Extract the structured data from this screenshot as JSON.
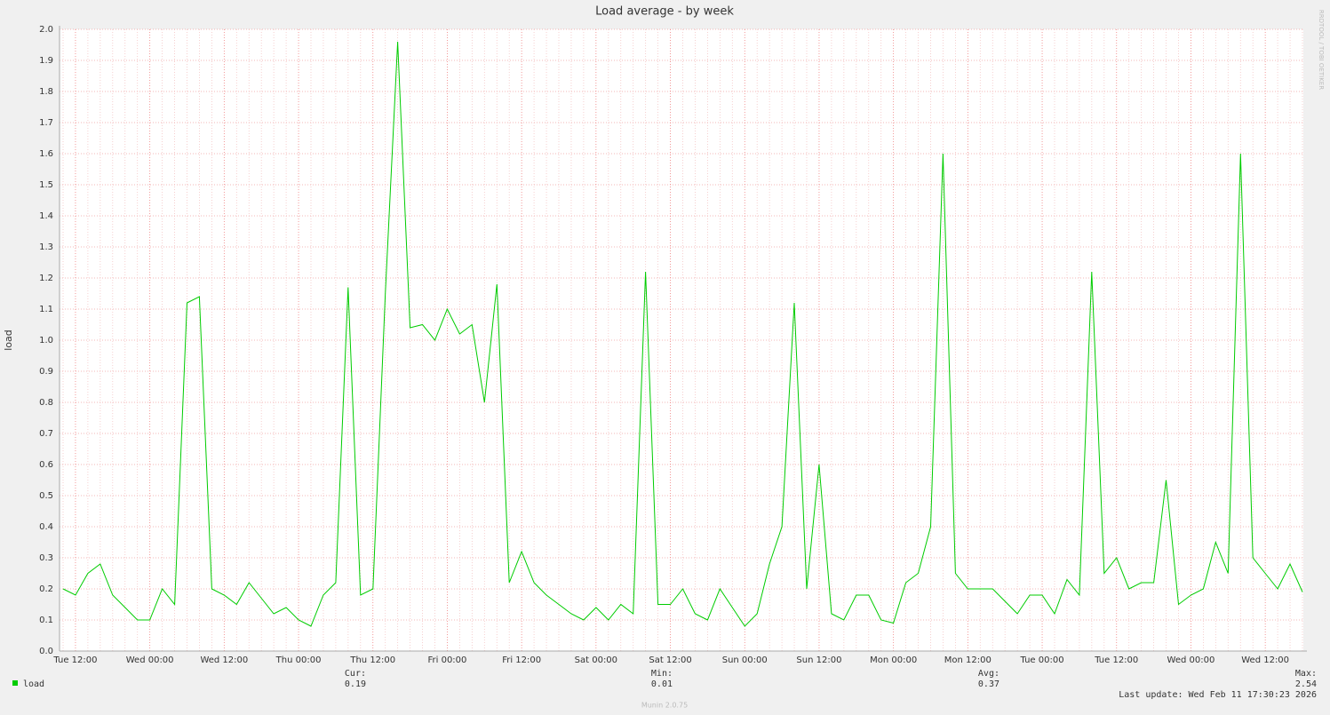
{
  "chart_data": {
    "type": "line",
    "title": "Load average - by week",
    "y_label": "load",
    "side_text": "RRDTOOL / TOBI OETIKER",
    "categories": [
      null,
      "Tue 12:00",
      null,
      null,
      null,
      null,
      null,
      "Wed 00:00",
      null,
      null,
      null,
      null,
      null,
      "Wed 12:00",
      null,
      null,
      null,
      null,
      null,
      "Thu 00:00",
      null,
      null,
      null,
      null,
      null,
      "Thu 12:00",
      null,
      null,
      null,
      null,
      null,
      "Fri 00:00",
      null,
      null,
      null,
      null,
      null,
      "Fri 12:00",
      null,
      null,
      null,
      null,
      null,
      "Sat 00:00",
      null,
      null,
      null,
      null,
      null,
      "Sat 12:00",
      null,
      null,
      null,
      null,
      null,
      "Sun 00:00",
      null,
      null,
      null,
      null,
      null,
      "Sun 12:00",
      null,
      null,
      null,
      null,
      null,
      "Mon 00:00",
      null,
      null,
      null,
      null,
      null,
      "Mon 12:00",
      null,
      null,
      null,
      null,
      null,
      "Tue 00:00",
      null,
      null,
      null,
      null,
      null,
      "Tue 12:00",
      null,
      null,
      null,
      null,
      null,
      "Wed 00:00",
      null,
      null,
      null,
      null,
      null,
      "Wed 12:00",
      null,
      null,
      null
    ],
    "series": [
      {
        "name": "load",
        "color": "#00cc00",
        "values": [
          0.2,
          0.18,
          0.25,
          0.28,
          0.18,
          0.14,
          0.1,
          0.1,
          0.2,
          0.15,
          1.12,
          1.14,
          0.2,
          0.18,
          0.15,
          0.22,
          0.17,
          0.12,
          0.14,
          0.1,
          0.08,
          0.18,
          0.22,
          1.17,
          0.18,
          0.2,
          1.15,
          1.96,
          1.04,
          1.05,
          1.0,
          1.1,
          1.02,
          1.05,
          0.8,
          1.18,
          0.22,
          0.32,
          0.22,
          0.18,
          0.15,
          0.12,
          0.1,
          0.14,
          0.1,
          0.15,
          0.12,
          1.22,
          0.15,
          0.15,
          0.2,
          0.12,
          0.1,
          0.2,
          0.14,
          0.08,
          0.12,
          0.28,
          0.4,
          1.12,
          0.2,
          0.6,
          0.12,
          0.1,
          0.18,
          0.18,
          0.1,
          0.09,
          0.22,
          0.25,
          0.4,
          1.6,
          0.25,
          0.2,
          0.2,
          0.2,
          0.16,
          0.12,
          0.18,
          0.18,
          0.12,
          0.23,
          0.18,
          1.22,
          0.25,
          0.3,
          0.2,
          0.22,
          0.22,
          0.55,
          0.15,
          0.18,
          0.2,
          0.35,
          0.25,
          1.6,
          0.3,
          0.25,
          0.2,
          0.28,
          0.19
        ]
      }
    ],
    "ylim": [
      0,
      2
    ],
    "yticks": [
      {
        "value": 0,
        "label": "0.0"
      },
      0.1,
      0.2,
      0.3,
      0.4,
      0.5,
      0.6,
      0.7,
      0.8,
      0.9,
      {
        "value": 1,
        "label": "1.0"
      },
      1.1,
      1.2,
      1.3,
      1.4,
      1.5,
      1.6,
      1.7,
      1.8,
      1.9,
      {
        "value": 2,
        "label": "2.0"
      }
    ],
    "grid": true,
    "legend_stats": [
      {
        "label": "Cur:",
        "value": "0.19"
      },
      {
        "label": "Min:",
        "value": "0.01"
      },
      {
        "label": "Avg:",
        "value": "0.37"
      },
      {
        "label": "Max:",
        "value": "2.54"
      }
    ],
    "last_update": "Last update: Wed Feb 11 17:30:23 2026",
    "footer": "Munin 2.0.75"
  }
}
